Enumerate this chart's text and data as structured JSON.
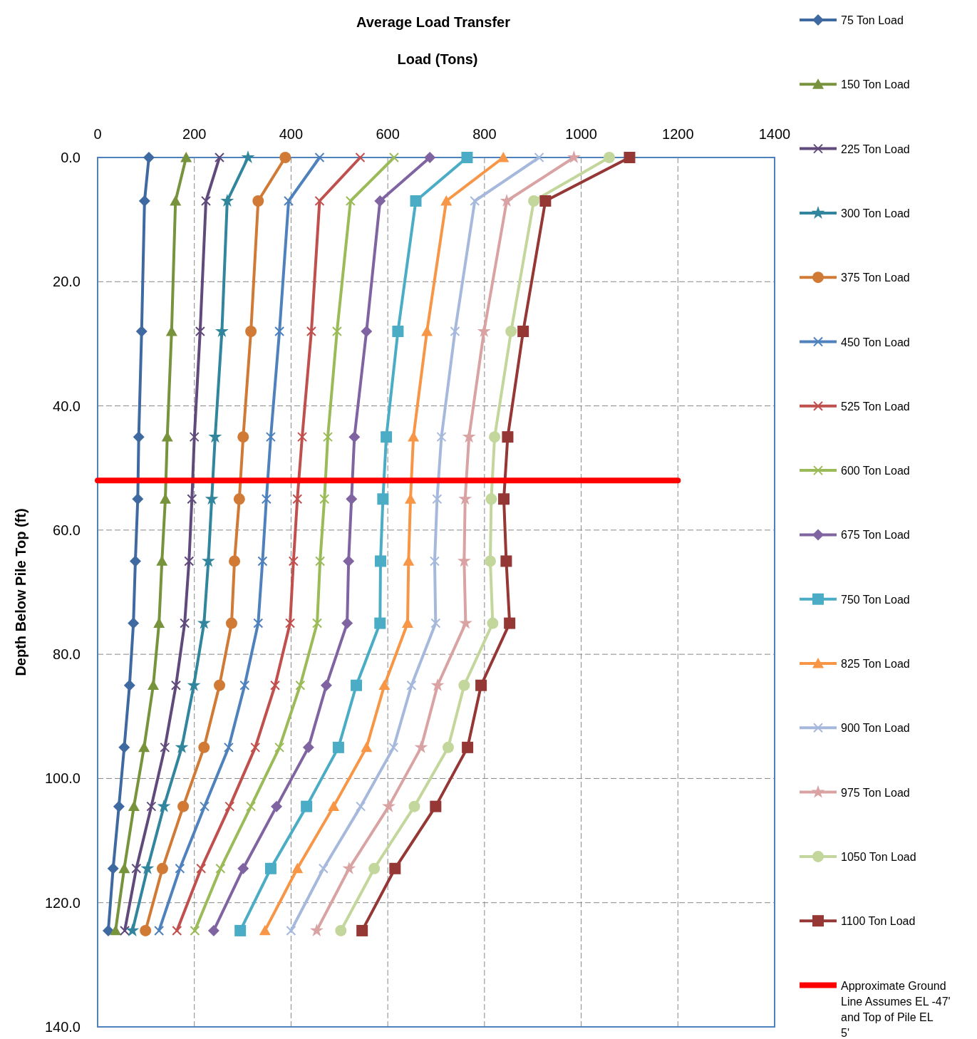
{
  "chart_data": {
    "type": "line",
    "title": "Average Load Transfer",
    "xlabel": "Load (Tons)",
    "ylabel": "Depth Below Pile Top (ft)",
    "xlim": [
      0,
      1400
    ],
    "xticks": [
      0,
      200,
      400,
      600,
      800,
      1000,
      1200,
      1400
    ],
    "ylim": [
      140,
      0
    ],
    "yticks": [
      {
        "value": 0,
        "label": "0.0"
      },
      {
        "value": 20,
        "label": "20.0"
      },
      {
        "value": 40,
        "label": "40.0"
      },
      {
        "value": 60,
        "label": "60.0"
      },
      {
        "value": 80,
        "label": "80.0"
      },
      {
        "value": 100,
        "label": "100.0"
      },
      {
        "value": 120,
        "label": "120.0"
      },
      {
        "value": 140,
        "label": "140.0"
      }
    ],
    "grid": true,
    "legend": "right",
    "series": [
      {
        "name": "75 Ton Load",
        "color": "#3f6aa1",
        "marker": "diamond",
        "x": [
          106,
          97,
          91,
          85,
          83,
          78,
          74,
          66,
          55,
          44,
          32,
          22
        ],
        "values": [
          0,
          7,
          28,
          45,
          55,
          65,
          75,
          85,
          95,
          104.5,
          114.5,
          124.5
        ]
      },
      {
        "name": "150 Ton Load",
        "color": "#77933c",
        "marker": "triangle",
        "x": [
          183,
          161,
          153,
          144,
          140,
          133,
          127,
          115,
          96,
          75,
          55,
          37
        ],
        "values": [
          0,
          7,
          28,
          45,
          55,
          65,
          75,
          85,
          95,
          104.5,
          114.5,
          124.5
        ]
      },
      {
        "name": "225 Ton Load",
        "color": "#604a7b",
        "marker": "cross",
        "x": [
          252,
          224,
          212,
          200,
          195,
          189,
          180,
          162,
          139,
          111,
          80,
          56
        ],
        "values": [
          0,
          7,
          28,
          45,
          55,
          65,
          75,
          85,
          95,
          104.5,
          114.5,
          124.5
        ]
      },
      {
        "name": "300 Ton Load",
        "color": "#31859c",
        "marker": "star",
        "x": [
          311,
          268,
          257,
          243,
          236,
          229,
          220,
          199,
          174,
          137,
          103,
          72
        ],
        "values": [
          0,
          7,
          28,
          45,
          55,
          65,
          75,
          85,
          95,
          104.5,
          114.5,
          124.5
        ]
      },
      {
        "name": "375 Ton Load",
        "color": "#d07a35",
        "marker": "circle",
        "x": [
          388,
          332,
          317,
          301,
          293,
          283,
          277,
          252,
          220,
          177,
          134,
          99
        ],
        "values": [
          0,
          7,
          28,
          45,
          55,
          65,
          75,
          85,
          95,
          104.5,
          114.5,
          124.5
        ]
      },
      {
        "name": "450 Ton Load",
        "color": "#4f81bd",
        "marker": "cross",
        "x": [
          459,
          395,
          376,
          358,
          349,
          341,
          332,
          304,
          271,
          221,
          170,
          127
        ],
        "values": [
          0,
          7,
          28,
          45,
          55,
          65,
          75,
          85,
          95,
          104.5,
          114.5,
          124.5
        ]
      },
      {
        "name": "525 Ton Load",
        "color": "#c0504d",
        "marker": "cross",
        "x": [
          543,
          459,
          442,
          423,
          413,
          405,
          398,
          367,
          326,
          273,
          214,
          164
        ],
        "values": [
          0,
          7,
          28,
          45,
          55,
          65,
          75,
          85,
          95,
          104.5,
          114.5,
          124.5
        ]
      },
      {
        "name": "600 Ton Load",
        "color": "#9bbb59",
        "marker": "cross",
        "x": [
          613,
          523,
          495,
          476,
          469,
          460,
          454,
          419,
          376,
          317,
          254,
          201
        ],
        "values": [
          0,
          7,
          28,
          45,
          55,
          65,
          75,
          85,
          95,
          104.5,
          114.5,
          124.5
        ]
      },
      {
        "name": "675 Ton Load",
        "color": "#8064a2",
        "marker": "diamond",
        "x": [
          687,
          584,
          556,
          531,
          525,
          519,
          516,
          473,
          436,
          370,
          301,
          240
        ],
        "values": [
          0,
          7,
          28,
          45,
          55,
          65,
          75,
          85,
          95,
          104.5,
          114.5,
          124.5
        ]
      },
      {
        "name": "750 Ton Load",
        "color": "#4bacc6",
        "marker": "square",
        "x": [
          764,
          658,
          621,
          597,
          590,
          585,
          584,
          535,
          498,
          432,
          358,
          295
        ],
        "values": [
          0,
          7,
          28,
          45,
          55,
          65,
          75,
          85,
          95,
          104.5,
          114.5,
          124.5
        ]
      },
      {
        "name": "825 Ton Load",
        "color": "#f79646",
        "marker": "triangle",
        "x": [
          839,
          721,
          681,
          653,
          647,
          643,
          641,
          593,
          556,
          488,
          413,
          346
        ],
        "values": [
          0,
          7,
          28,
          45,
          55,
          65,
          75,
          85,
          95,
          104.5,
          114.5,
          124.5
        ]
      },
      {
        "name": "900 Ton Load",
        "color": "#a6b9dc",
        "marker": "cross",
        "x": [
          913,
          780,
          739,
          711,
          702,
          697,
          699,
          649,
          612,
          544,
          467,
          400
        ],
        "values": [
          0,
          7,
          28,
          45,
          55,
          65,
          75,
          85,
          95,
          104.5,
          114.5,
          124.5
        ]
      },
      {
        "name": "975 Ton Load",
        "color": "#d9a3a3",
        "marker": "star",
        "x": [
          985,
          846,
          799,
          768,
          760,
          758,
          761,
          703,
          669,
          602,
          520,
          453
        ],
        "values": [
          0,
          7,
          28,
          45,
          55,
          65,
          75,
          85,
          95,
          104.5,
          114.5,
          124.5
        ]
      },
      {
        "name": "1050 Ton Load",
        "color": "#c3d69b",
        "marker": "circle",
        "x": [
          1058,
          902,
          855,
          821,
          814,
          812,
          817,
          758,
          725,
          655,
          572,
          503
        ],
        "values": [
          0,
          7,
          28,
          45,
          55,
          65,
          75,
          85,
          95,
          104.5,
          114.5,
          124.5
        ]
      },
      {
        "name": "1100 Ton Load",
        "color": "#953735",
        "marker": "square",
        "x": [
          1100,
          926,
          880,
          848,
          840,
          845,
          852,
          793,
          765,
          699,
          615,
          547
        ],
        "values": [
          0,
          7,
          28,
          45,
          55,
          65,
          75,
          85,
          95,
          104.5,
          114.5,
          124.5
        ]
      },
      {
        "name": "Approximate Ground Line Assumes EL -47' and Top of Pile EL 5'",
        "color": "#ff0000",
        "marker": "none",
        "x": [
          0,
          1200
        ],
        "values": [
          52,
          52
        ]
      }
    ]
  }
}
